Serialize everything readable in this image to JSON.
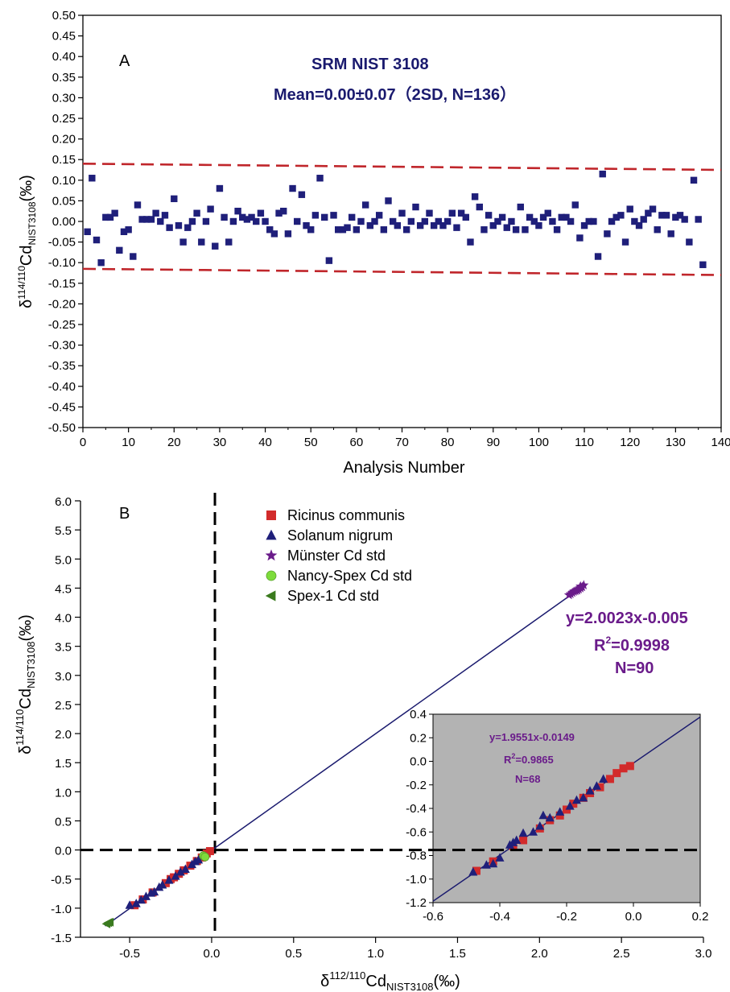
{
  "chart_data": [
    {
      "type": "scatter",
      "panel_label": "A",
      "title": "SRM NIST 3108",
      "subtitle": "Mean=0.00±0.07（2SD, N=136）",
      "xlabel": "Analysis Number",
      "ylabel": "δ114/110CdNIST3108(‰)",
      "ylabel_parts": {
        "delta": "δ",
        "sup": "114/110",
        "main": "Cd",
        "sub": "NIST3108",
        "unit": "(‰)"
      },
      "xlim": [
        0,
        140
      ],
      "ylim": [
        -0.5,
        0.5
      ],
      "xticks": [
        "0",
        "10",
        "20",
        "30",
        "40",
        "50",
        "60",
        "70",
        "80",
        "90",
        "100",
        "110",
        "120",
        "130",
        "140"
      ],
      "yticks": [
        "-0.50",
        "-0.45",
        "-0.40",
        "-0.35",
        "-0.30",
        "-0.25",
        "-0.20",
        "-0.15",
        "-0.10",
        "-0.05",
        "0.00",
        "0.05",
        "0.10",
        "0.15",
        "0.20",
        "0.25",
        "0.30",
        "0.35",
        "0.40",
        "0.45",
        "0.50"
      ],
      "colors": {
        "points": "#1f1f7a",
        "limits": "#c0262b"
      },
      "limit_lines": [
        {
          "x": [
            0,
            140
          ],
          "y": [
            0.14,
            0.125
          ]
        },
        {
          "x": [
            0,
            140
          ],
          "y": [
            -0.115,
            -0.13
          ]
        }
      ],
      "series": [
        {
          "x": [
            1,
            2,
            3,
            4,
            5,
            6,
            7,
            8,
            9,
            10,
            11,
            12,
            13,
            14,
            15,
            16,
            17,
            18,
            19,
            20,
            21,
            22,
            23,
            24,
            25,
            26,
            27,
            28,
            29,
            30,
            31,
            32,
            33,
            34,
            35,
            36,
            37,
            38,
            39,
            40,
            41,
            42,
            43,
            44,
            45,
            46,
            47,
            48,
            49,
            50,
            51,
            52,
            53,
            54,
            55,
            56,
            57,
            58,
            59,
            60,
            61,
            62,
            63,
            64,
            65,
            66,
            67,
            68,
            69,
            70,
            71,
            72,
            73,
            74,
            75,
            76,
            77,
            78,
            79,
            80,
            81,
            82,
            83,
            84,
            85,
            86,
            87,
            88,
            89,
            90,
            91,
            92,
            93,
            94,
            95,
            96,
            97,
            98,
            99,
            100,
            101,
            102,
            103,
            104,
            105,
            106,
            107,
            108,
            109,
            110,
            111,
            112,
            113,
            114,
            115,
            116,
            117,
            118,
            119,
            120,
            121,
            122,
            123,
            124,
            125,
            126,
            127,
            128,
            129,
            130,
            131,
            132,
            133,
            134,
            135,
            136
          ],
          "y": [
            -0.025,
            0.105,
            -0.045,
            -0.1,
            0.01,
            0.01,
            0.02,
            -0.07,
            -0.025,
            -0.02,
            -0.085,
            0.04,
            0.005,
            0.005,
            0.005,
            0.02,
            0.0,
            0.015,
            -0.015,
            0.055,
            -0.01,
            -0.05,
            -0.015,
            0.0,
            0.02,
            -0.05,
            0.0,
            0.03,
            -0.06,
            0.08,
            0.01,
            -0.05,
            0.0,
            0.025,
            0.01,
            0.005,
            0.01,
            0.0,
            0.02,
            0.0,
            -0.02,
            -0.03,
            0.02,
            0.025,
            -0.03,
            0.08,
            0.0,
            0.065,
            -0.01,
            -0.02,
            0.015,
            0.105,
            0.01,
            -0.095,
            0.015,
            -0.02,
            -0.02,
            -0.015,
            0.01,
            -0.02,
            0.0,
            0.04,
            -0.01,
            0.0,
            0.015,
            -0.02,
            0.05,
            0.0,
            -0.01,
            0.02,
            -0.02,
            0.0,
            0.035,
            -0.01,
            0.0,
            0.02,
            -0.01,
            0.0,
            -0.01,
            0.0,
            0.02,
            -0.015,
            0.02,
            0.01,
            -0.05,
            0.06,
            0.035,
            -0.02,
            0.015,
            -0.01,
            0.0,
            0.01,
            -0.015,
            0.0,
            -0.02,
            0.035,
            -0.02,
            0.01,
            0.0,
            -0.01,
            0.01,
            0.02,
            0.0,
            -0.02,
            0.01,
            0.01,
            0.0,
            0.04,
            -0.04,
            -0.01,
            0.0,
            0.0,
            -0.085,
            0.115,
            -0.03,
            0.0,
            0.01,
            0.015,
            -0.05,
            0.03,
            0.0,
            -0.01,
            0.005,
            0.02,
            0.03,
            -0.02,
            0.015,
            0.015,
            -0.03,
            0.01,
            0.015,
            0.005,
            -0.05,
            0.1,
            0.005,
            -0.105
          ]
        }
      ]
    },
    {
      "type": "scatter",
      "panel_label": "B",
      "xlabel": "δ112/110CdNIST3108(‰)",
      "ylabel": "δ114/110CdNIST3108(‰)",
      "xlabel_parts": {
        "delta": "δ",
        "sup": "112/110",
        "main": "Cd",
        "sub": "NIST3108",
        "unit": "(‰)"
      },
      "ylabel_parts": {
        "delta": "δ",
        "sup": "114/110",
        "main": "Cd",
        "sub": "NIST3108",
        "unit": "(‰)"
      },
      "xlim": [
        -0.8,
        3.0
      ],
      "ylim": [
        -1.5,
        6.0
      ],
      "xticks": [
        "-0.5",
        "0.0",
        "0.5",
        "1.0",
        "1.5",
        "2.0",
        "2.5",
        "3.0"
      ],
      "yticks": [
        "-1.5",
        "-1.0",
        "-0.5",
        "0.0",
        "0.5",
        "1.0",
        "1.5",
        "2.0",
        "2.5",
        "3.0",
        "3.5",
        "4.0",
        "4.5",
        "5.0",
        "5.5",
        "6.0"
      ],
      "fit_line": {
        "slope": 2.0023,
        "intercept": -0.005,
        "x_range": [
          -0.65,
          2.28
        ],
        "color": "#1a1a6e"
      },
      "equation": "y=2.0023x-0.005",
      "r2_parts": {
        "r": "R",
        "sup": "2",
        "rest": "=0.9998"
      },
      "n_text": "N=90",
      "colors": {
        "annotation": "#6a1b8a",
        "fit": "#1a1a6e"
      },
      "legend_placement": "top-center",
      "series": [
        {
          "name": "Ricinus communis",
          "marker": "square",
          "color": "#d22b2b",
          "x": [
            -0.47,
            -0.42,
            -0.36,
            -0.28,
            -0.25,
            -0.23,
            -0.2,
            -0.17,
            -0.13,
            -0.09,
            -0.06,
            -0.03,
            -0.01
          ],
          "y": [
            -0.95,
            -0.85,
            -0.73,
            -0.57,
            -0.5,
            -0.47,
            -0.41,
            -0.35,
            -0.27,
            -0.19,
            -0.13,
            -0.06,
            -0.02
          ]
        },
        {
          "name": "Solanum nigrum",
          "marker": "triangle",
          "color": "#1f1f7a",
          "x": [
            -0.5,
            -0.46,
            -0.43,
            -0.4,
            -0.37,
            -0.35,
            -0.32,
            -0.3,
            -0.26,
            -0.22,
            -0.19,
            -0.16,
            -0.12,
            -0.1,
            -0.08,
            -0.05
          ],
          "y": [
            -0.95,
            -0.92,
            -0.86,
            -0.8,
            -0.74,
            -0.72,
            -0.64,
            -0.6,
            -0.52,
            -0.45,
            -0.38,
            -0.33,
            -0.25,
            -0.2,
            -0.17,
            -0.1
          ]
        },
        {
          "name": "Münster Cd std",
          "marker": "star",
          "color": "#6a1b8a",
          "x": [
            2.18,
            2.2,
            2.21,
            2.22,
            2.23,
            2.24,
            2.25,
            2.26,
            2.27,
            2.19,
            2.23,
            2.25
          ],
          "y": [
            4.38,
            4.42,
            4.44,
            4.45,
            4.47,
            4.48,
            4.5,
            4.52,
            4.55,
            4.4,
            4.46,
            4.53
          ]
        },
        {
          "name": "Nancy-Spex Cd std",
          "marker": "circle",
          "color": "#7ddc3c",
          "x": [
            -0.05,
            -0.04
          ],
          "y": [
            -0.1,
            -0.12
          ]
        },
        {
          "name": "Spex-1 Cd std",
          "marker": "triangle-left",
          "color": "#3a7a1e",
          "x": [
            -0.64,
            -0.63,
            -0.62
          ],
          "y": [
            -1.27,
            -1.25,
            -1.24
          ]
        }
      ],
      "inset": {
        "type": "scatter",
        "background": "#b3b3b3",
        "xlim": [
          -0.6,
          0.2
        ],
        "ylim": [
          -1.2,
          0.4
        ],
        "xticks": [
          "-0.6",
          "-0.4",
          "-0.2",
          "0.0",
          "0.2"
        ],
        "yticks": [
          "-1.2",
          "-1.0",
          "-0.8",
          "-0.6",
          "-0.4",
          "-0.2",
          "0.0",
          "0.2",
          "0.4"
        ],
        "fit_line": {
          "slope": 1.9551,
          "intercept": -0.0149,
          "x_range": [
            -0.6,
            0.2
          ]
        },
        "equation": "y=1.9551x-0.0149",
        "r2_parts": {
          "r": "R",
          "sup": "2",
          "rest": "=0.9865"
        },
        "n_text": "N=68",
        "series": [
          {
            "name": "Ricinus communis",
            "marker": "square",
            "color": "#d22b2b",
            "x": [
              -0.47,
              -0.42,
              -0.36,
              -0.33,
              -0.28,
              -0.25,
              -0.22,
              -0.2,
              -0.18,
              -0.15,
              -0.13,
              -0.1,
              -0.07,
              -0.05,
              -0.03,
              -0.01
            ],
            "y": [
              -0.93,
              -0.85,
              -0.72,
              -0.67,
              -0.57,
              -0.5,
              -0.46,
              -0.41,
              -0.36,
              -0.31,
              -0.27,
              -0.22,
              -0.15,
              -0.1,
              -0.06,
              -0.04
            ]
          },
          {
            "name": "Solanum nigrum",
            "marker": "triangle",
            "color": "#1f1f7a",
            "x": [
              -0.48,
              -0.44,
              -0.42,
              -0.4,
              -0.37,
              -0.36,
              -0.35,
              -0.33,
              -0.3,
              -0.28,
              -0.27,
              -0.25,
              -0.22,
              -0.19,
              -0.17,
              -0.15,
              -0.13,
              -0.11,
              -0.09
            ],
            "y": [
              -0.94,
              -0.88,
              -0.87,
              -0.82,
              -0.71,
              -0.69,
              -0.67,
              -0.61,
              -0.6,
              -0.55,
              -0.46,
              -0.48,
              -0.43,
              -0.38,
              -0.33,
              -0.31,
              -0.25,
              -0.21,
              -0.15
            ]
          }
        ]
      }
    }
  ]
}
